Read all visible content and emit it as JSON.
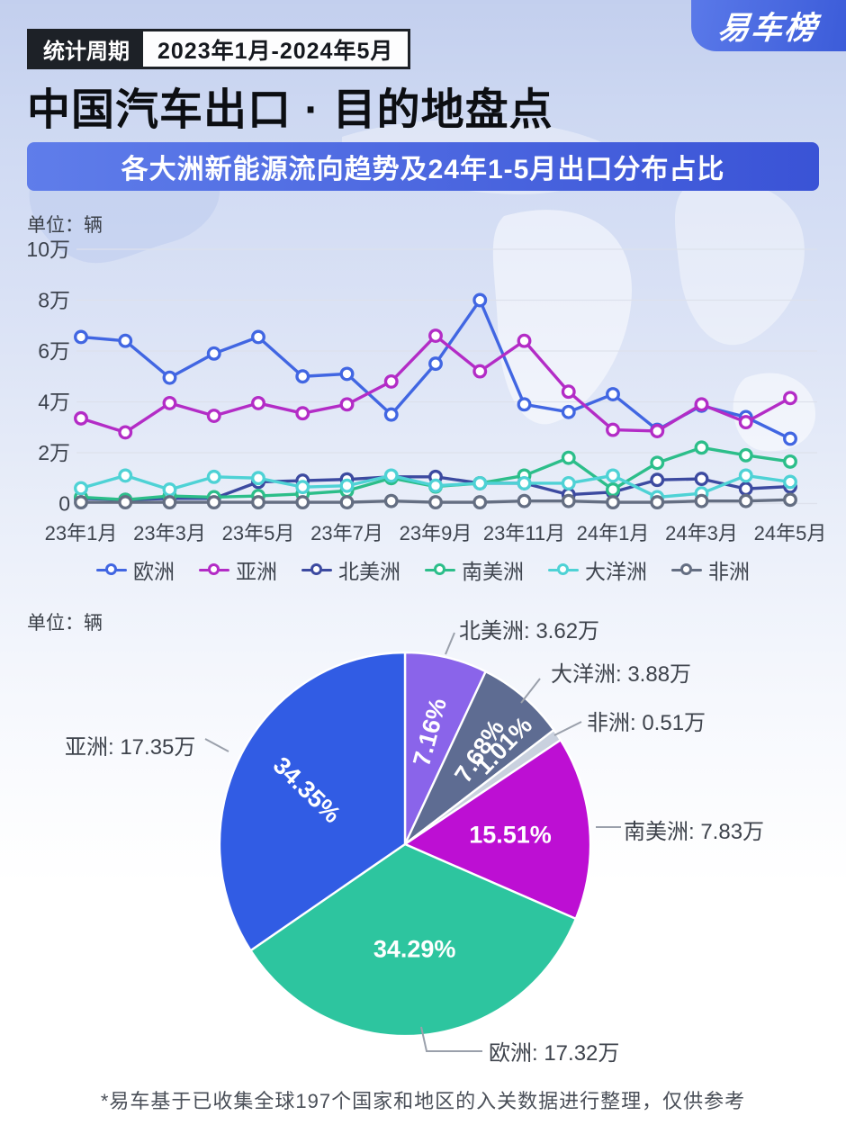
{
  "page": {
    "logo": "易车榜",
    "badge": {
      "label": "统计周期",
      "period": "2023年1月-2024年5月"
    },
    "title": "中国汽车出口 · 目的地盘点",
    "subtitle": "各大洲新能源流向趋势及24年1-5月出口分布占比",
    "footnote": "*易车基于已收集全球197个国家和地区的入关数据进行整理，仅供参考"
  },
  "chart_data": [
    {
      "type": "line",
      "unit_label": "单位：辆",
      "unit": "万辆",
      "x": [
        "23年1月",
        "23年2月",
        "23年3月",
        "23年4月",
        "23年5月",
        "23年6月",
        "23年7月",
        "23年8月",
        "23年9月",
        "23年10月",
        "23年11月",
        "23年12月",
        "24年1月",
        "24年2月",
        "24年3月",
        "24年4月",
        "24年5月"
      ],
      "x_tick_labels": [
        "23年1月",
        "23年3月",
        "23年5月",
        "23年7月",
        "23年9月",
        "23年11月",
        "24年1月",
        "24年3月",
        "24年5月"
      ],
      "y_tick_labels": [
        "0",
        "2万",
        "4万",
        "6万",
        "8万",
        "10万"
      ],
      "ylim_wan": [
        0,
        10
      ],
      "grid": true,
      "legend_position": "bottom",
      "series": [
        {
          "name": "欧洲",
          "key": "europe",
          "color": "#4166e2",
          "values_wan": [
            6.55,
            6.4,
            4.95,
            5.9,
            6.55,
            5.0,
            5.1,
            3.5,
            5.5,
            8.0,
            3.9,
            3.6,
            4.3,
            2.9,
            3.85,
            3.4,
            2.55
          ]
        },
        {
          "name": "亚洲",
          "key": "asia",
          "color": "#b32cc6",
          "values_wan": [
            3.35,
            2.8,
            3.95,
            3.45,
            3.95,
            3.55,
            3.9,
            4.8,
            6.6,
            5.2,
            6.4,
            4.4,
            2.9,
            2.85,
            3.9,
            3.2,
            4.15
          ]
        },
        {
          "name": "北美洲",
          "key": "north-america",
          "color": "#3c4aa0",
          "values_wan": [
            0.2,
            0.15,
            0.2,
            0.2,
            0.85,
            0.9,
            0.95,
            1.05,
            1.05,
            0.8,
            0.8,
            0.35,
            0.45,
            0.93,
            0.97,
            0.58,
            0.67
          ]
        },
        {
          "name": "南美洲",
          "key": "south-america",
          "color": "#2cbe8a",
          "values_wan": [
            0.25,
            0.15,
            0.3,
            0.25,
            0.3,
            0.38,
            0.5,
            1.0,
            0.67,
            0.8,
            1.1,
            1.8,
            0.55,
            1.6,
            2.2,
            1.9,
            1.65
          ]
        },
        {
          "name": "大洋洲",
          "key": "oceania",
          "color": "#4ed2d5",
          "values_wan": [
            0.6,
            1.1,
            0.55,
            1.05,
            1.0,
            0.65,
            0.7,
            1.1,
            0.7,
            0.8,
            0.8,
            0.8,
            1.1,
            0.25,
            0.4,
            1.1,
            0.85
          ]
        },
        {
          "name": "非洲",
          "key": "africa",
          "color": "#646e82",
          "values_wan": [
            0.05,
            0.05,
            0.05,
            0.05,
            0.05,
            0.05,
            0.05,
            0.1,
            0.05,
            0.05,
            0.1,
            0.1,
            0.05,
            0.05,
            0.1,
            0.1,
            0.15
          ]
        }
      ]
    },
    {
      "type": "pie",
      "unit_label": "单位：辆",
      "start_at": "top",
      "direction": "clockwise",
      "legend_position": "none",
      "slices": [
        {
          "name": "北美洲",
          "key": "north-america",
          "percent": 7.16,
          "percent_label": "7.16%",
          "value_wan": 3.62,
          "value_label": "北美洲: 3.62万",
          "color": "#8a64ea"
        },
        {
          "name": "大洋洲",
          "key": "oceania",
          "percent": 7.68,
          "percent_label": "7.68%",
          "value_wan": 3.88,
          "value_label": "大洋洲: 3.88万",
          "color": "#5e6c92"
        },
        {
          "name": "非洲",
          "key": "africa",
          "percent": 1.01,
          "percent_label": "1.01%",
          "value_wan": 0.51,
          "value_label": "非洲: 0.51万",
          "color": "#c9d1de"
        },
        {
          "name": "南美洲",
          "key": "south-america",
          "percent": 15.51,
          "percent_label": "15.51%",
          "value_wan": 7.83,
          "value_label": "南美洲: 7.83万",
          "color": "#bd0fd3"
        },
        {
          "name": "欧洲",
          "key": "europe",
          "percent": 34.29,
          "percent_label": "34.29%",
          "value_wan": 17.32,
          "value_label": "欧洲: 17.32万",
          "color": "#2dc59f"
        },
        {
          "name": "亚洲",
          "key": "asia",
          "percent": 34.35,
          "percent_label": "34.35%",
          "value_wan": 17.35,
          "value_label": "亚洲: 17.35万",
          "color": "#315ce4"
        }
      ]
    }
  ]
}
